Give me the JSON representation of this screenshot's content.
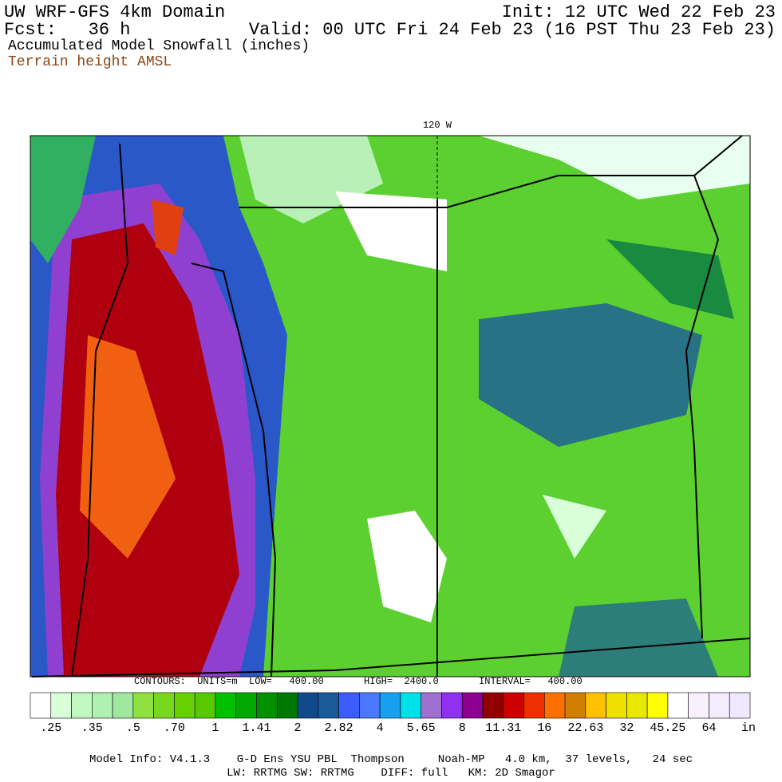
{
  "header": {
    "title": "UW WRF-GFS 4km Domain",
    "init": "Init: 12 UTC Wed 22 Feb 23",
    "fcst": "Fcst:   36 h",
    "valid": "Valid: 00 UTC Fri 24 Feb 23 (16 PST Thu 23 Feb 23)",
    "field": "Accumulated Model Snowfall (inches)",
    "overlay": "Terrain height AMSL"
  },
  "map": {
    "meridian_label": "120 W",
    "contours": "CONTOURS:  UNITS=m  LOW=   400.00       HIGH=  2400.0       INTERVAL=   400.00"
  },
  "legend": {
    "colors": [
      "#ffffff",
      "#d8ffd8",
      "#c0f8c0",
      "#b0f0b0",
      "#a0e8a0",
      "#90e040",
      "#78d820",
      "#68d000",
      "#58c800",
      "#00c000",
      "#00a800",
      "#009000",
      "#007800",
      "#104a88",
      "#1a5a9a",
      "#3c5cff",
      "#4a78ff",
      "#18a0f0",
      "#00e0e8",
      "#a070d0",
      "#9030f0",
      "#8c0090",
      "#900000",
      "#cc0000",
      "#ee3000",
      "#ff7000",
      "#d08000",
      "#ffc000",
      "#f0e000",
      "#e8e800",
      "#ffff00",
      "#ffffff",
      "#f8f0ff",
      "#f4ecff",
      "#f0e8ff"
    ],
    "labels": [
      ".25",
      ".35",
      ".5",
      ".70",
      "1",
      "1.41",
      "2",
      "2.82",
      "4",
      "5.65",
      "8",
      "11.31",
      "16",
      "22.63",
      "32",
      "45.25",
      "64"
    ],
    "unit": "in"
  },
  "footer": {
    "line1": "Model Info: V4.1.3    G-D Ens YSU PBL  Thompson     Noah-MP   4.0 km,  37 levels,   24 sec",
    "line2": "LW: RRTMG SW: RRTMG    DIFF: full   KM: 2D Smagor"
  }
}
